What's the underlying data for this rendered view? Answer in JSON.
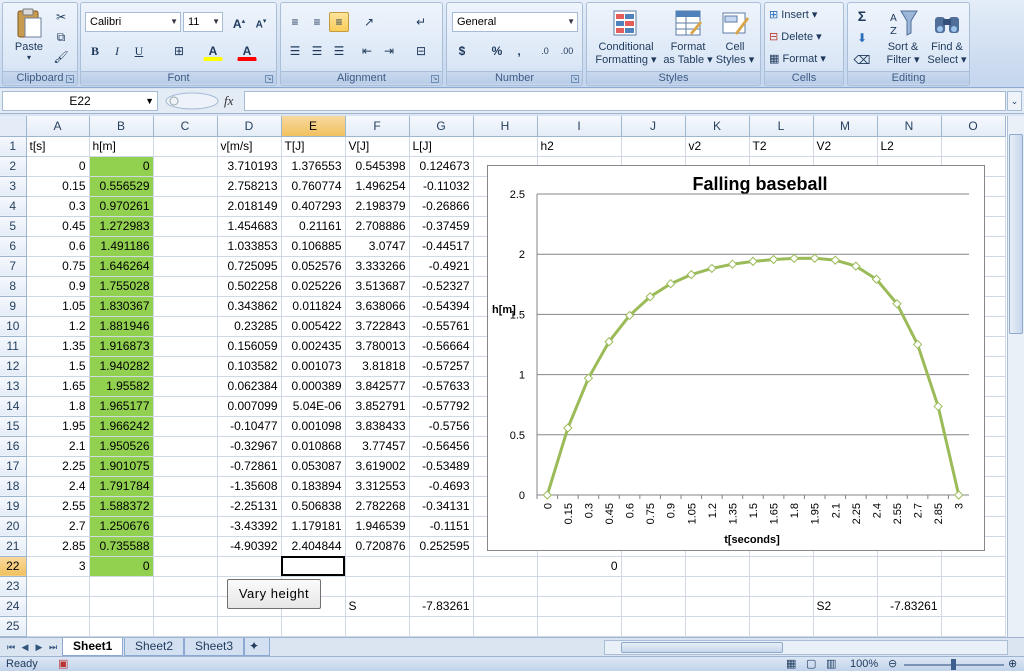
{
  "ribbon": {
    "clipboard": {
      "label": "Clipboard",
      "paste": "Paste"
    },
    "font": {
      "label": "Font",
      "name": "Calibri",
      "size": "11",
      "bold": "B",
      "italic": "I",
      "underline": "U",
      "grow": "A",
      "shrink": "A",
      "fill": "A",
      "color": "A"
    },
    "alignment": {
      "label": "Alignment"
    },
    "number": {
      "label": "Number",
      "format": "General",
      "currency": "$",
      "percent": "%",
      "comma": ",",
      "inc": ".0",
      "dec": ".00"
    },
    "styles": {
      "label": "Styles",
      "conditional": "Conditional",
      "conditional2": "Formatting",
      "format_table": "Format",
      "format_table2": "as Table",
      "cell_styles": "Cell",
      "cell_styles2": "Styles"
    },
    "cells": {
      "label": "Cells",
      "insert": "Insert",
      "delete": "Delete",
      "format": "Format"
    },
    "editing": {
      "label": "Editing",
      "sort": "Sort &",
      "sort2": "Filter",
      "find": "Find &",
      "find2": "Select",
      "sigma": "Σ"
    }
  },
  "formula_bar": {
    "name_box": "E22",
    "fx": "fx",
    "value": ""
  },
  "columns": [
    "A",
    "B",
    "C",
    "D",
    "E",
    "F",
    "G",
    "H",
    "I",
    "J",
    "K",
    "L",
    "M",
    "N",
    "O"
  ],
  "selected_column": "E",
  "selected_row": "22",
  "rows": [
    {
      "n": "1",
      "A": "t[s]",
      "B": "h[m]",
      "C": "",
      "D": "v[m/s]",
      "E": "T[J]",
      "F": "V[J]",
      "G": "L[J]",
      "H": "",
      "I": "h2",
      "J": "",
      "K": "v2",
      "L": "T2",
      "M": "V2",
      "N": "L2",
      "O": ""
    },
    {
      "n": "2",
      "A": "0",
      "B": "0",
      "D": "3.710193",
      "E": "1.376553",
      "F": "0.545398",
      "G": "0.124673"
    },
    {
      "n": "3",
      "A": "0.15",
      "B": "0.556529",
      "D": "2.758213",
      "E": "0.760774",
      "F": "1.496254",
      "G": "-0.11032"
    },
    {
      "n": "4",
      "A": "0.3",
      "B": "0.970261",
      "D": "2.018149",
      "E": "0.407293",
      "F": "2.198379",
      "G": "-0.26866"
    },
    {
      "n": "5",
      "A": "0.45",
      "B": "1.272983",
      "D": "1.454683",
      "E": "0.21161",
      "F": "2.708886",
      "G": "-0.37459"
    },
    {
      "n": "6",
      "A": "0.6",
      "B": "1.491186",
      "D": "1.033853",
      "E": "0.106885",
      "F": "3.0747",
      "G": "-0.44517"
    },
    {
      "n": "7",
      "A": "0.75",
      "B": "1.646264",
      "D": "0.725095",
      "E": "0.052576",
      "F": "3.333266",
      "G": "-0.4921"
    },
    {
      "n": "8",
      "A": "0.9",
      "B": "1.755028",
      "D": "0.502258",
      "E": "0.025226",
      "F": "3.513687",
      "G": "-0.52327"
    },
    {
      "n": "9",
      "A": "1.05",
      "B": "1.830367",
      "D": "0.343862",
      "E": "0.011824",
      "F": "3.638066",
      "G": "-0.54394"
    },
    {
      "n": "10",
      "A": "1.2",
      "B": "1.881946",
      "D": "0.23285",
      "E": "0.005422",
      "F": "3.722843",
      "G": "-0.55761"
    },
    {
      "n": "11",
      "A": "1.35",
      "B": "1.916873",
      "D": "0.156059",
      "E": "0.002435",
      "F": "3.780013",
      "G": "-0.56664"
    },
    {
      "n": "12",
      "A": "1.5",
      "B": "1.940282",
      "D": "0.103582",
      "E": "0.001073",
      "F": "3.81818",
      "G": "-0.57257"
    },
    {
      "n": "13",
      "A": "1.65",
      "B": "1.95582",
      "D": "0.062384",
      "E": "0.000389",
      "F": "3.842577",
      "G": "-0.57633"
    },
    {
      "n": "14",
      "A": "1.8",
      "B": "1.965177",
      "D": "0.007099",
      "E": "5.04E-06",
      "F": "3.852791",
      "G": "-0.57792"
    },
    {
      "n": "15",
      "A": "1.95",
      "B": "1.966242",
      "D": "-0.10477",
      "E": "0.001098",
      "F": "3.838433",
      "G": "-0.5756"
    },
    {
      "n": "16",
      "A": "2.1",
      "B": "1.950526",
      "D": "-0.32967",
      "E": "0.010868",
      "F": "3.77457",
      "G": "-0.56456"
    },
    {
      "n": "17",
      "A": "2.25",
      "B": "1.901075",
      "D": "-0.72861",
      "E": "0.053087",
      "F": "3.619002",
      "G": "-0.53489"
    },
    {
      "n": "18",
      "A": "2.4",
      "B": "1.791784",
      "D": "-1.35608",
      "E": "0.183894",
      "F": "3.312553",
      "G": "-0.4693"
    },
    {
      "n": "19",
      "A": "2.55",
      "B": "1.588372",
      "D": "-2.25131",
      "E": "0.506838",
      "F": "2.782268",
      "G": "-0.34131"
    },
    {
      "n": "20",
      "A": "2.7",
      "B": "1.250676",
      "D": "-3.43392",
      "E": "1.179181",
      "F": "1.946539",
      "G": "-0.1151"
    },
    {
      "n": "21",
      "A": "2.85",
      "B": "0.735588",
      "D": "-4.90392",
      "E": "2.404844",
      "F": "0.720876",
      "G": "0.252595"
    },
    {
      "n": "22",
      "A": "3",
      "B": "0",
      "I": "0"
    },
    {
      "n": "23"
    },
    {
      "n": "24",
      "F": "S",
      "G": "-7.83261",
      "M": "S2",
      "N": "-7.83261"
    },
    {
      "n": "25"
    }
  ],
  "button": {
    "label": "Vary height"
  },
  "chart_data": {
    "type": "line",
    "title": "Falling baseball",
    "xlabel": "t[seconds]",
    "ylabel": "h[m]",
    "ylim": [
      0,
      2.5
    ],
    "yticks": [
      "0",
      "0.5",
      "1",
      "1.5",
      "2",
      "2.5"
    ],
    "categories": [
      "0",
      "0.15",
      "0.3",
      "0.45",
      "0.6",
      "0.75",
      "0.9",
      "1.05",
      "1.2",
      "1.35",
      "1.5",
      "1.65",
      "1.8",
      "1.95",
      "2.1",
      "2.25",
      "2.4",
      "2.55",
      "2.7",
      "2.85",
      "3"
    ],
    "values": [
      0,
      0.556529,
      0.970261,
      1.272983,
      1.491186,
      1.646264,
      1.755028,
      1.830367,
      1.881946,
      1.916873,
      1.940282,
      1.95582,
      1.965177,
      1.966242,
      1.950526,
      1.901075,
      1.791784,
      1.588372,
      1.250676,
      0.735588,
      0
    ],
    "color": "#9bbb59",
    "grid": true
  },
  "sheets": [
    "Sheet1",
    "Sheet2",
    "Sheet3"
  ],
  "active_sheet": "Sheet1",
  "status": {
    "text": "Ready",
    "zoom": "100%"
  }
}
